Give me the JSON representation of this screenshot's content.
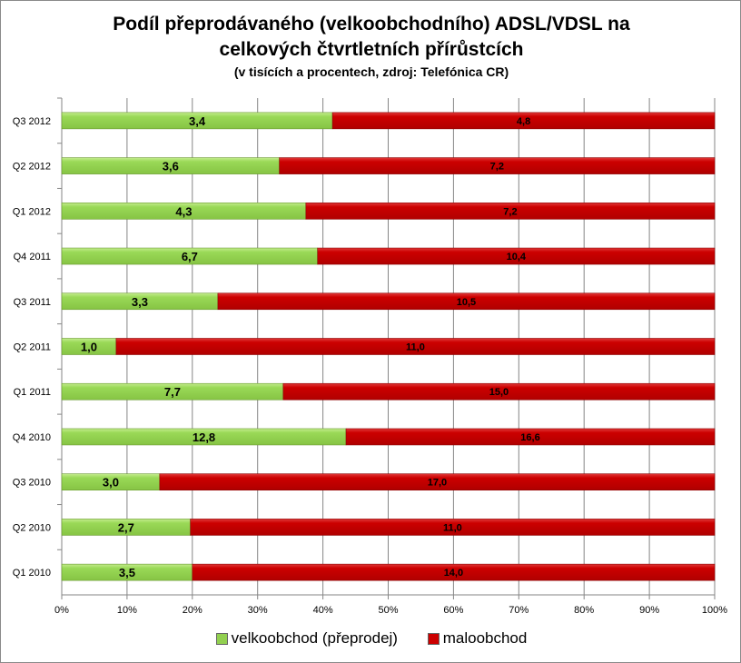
{
  "chart_data": {
    "type": "bar",
    "orientation": "horizontal",
    "stacking": "percent",
    "title": "Podíl přeprodávaného (velkoobchodního) ADSL/VDSL na",
    "title_line2": "celkových čtvrtletních přírůstcích",
    "subtitle": "(v tisících a procentech, zdroj: Telefónica CR)",
    "categories": [
      "Q3 2012",
      "Q2 2012",
      "Q1 2012",
      "Q4 2011",
      "Q3 2011",
      "Q2 2011",
      "Q1 2011",
      "Q4 2010",
      "Q3 2010",
      "Q2 2010",
      "Q1 2010"
    ],
    "series": [
      {
        "name": "velkoobchod (přeprodej)",
        "color": "#92d050",
        "values": [
          3.4,
          3.6,
          4.3,
          6.7,
          3.3,
          1.0,
          7.7,
          12.8,
          3.0,
          2.7,
          3.5
        ],
        "labels": [
          "3,4",
          "3,6",
          "4,3",
          "6,7",
          "3,3",
          "1,0",
          "7,7",
          "12,8",
          "3,0",
          "2,7",
          "3,5"
        ]
      },
      {
        "name": "maloobchod",
        "color": "#cc0000",
        "values": [
          4.8,
          7.2,
          7.2,
          10.4,
          10.5,
          11.0,
          15.0,
          16.6,
          17.0,
          11.0,
          14.0
        ],
        "labels": [
          "4,8",
          "7,2",
          "7,2",
          "10,4",
          "10,5",
          "11,0",
          "15,0",
          "16,6",
          "17,0",
          "11,0",
          "14,0"
        ]
      }
    ],
    "xticks": [
      "0%",
      "10%",
      "20%",
      "30%",
      "40%",
      "50%",
      "60%",
      "70%",
      "80%",
      "90%",
      "100%"
    ],
    "xlim": [
      0,
      100
    ],
    "grid": true,
    "legend_position": "bottom"
  }
}
